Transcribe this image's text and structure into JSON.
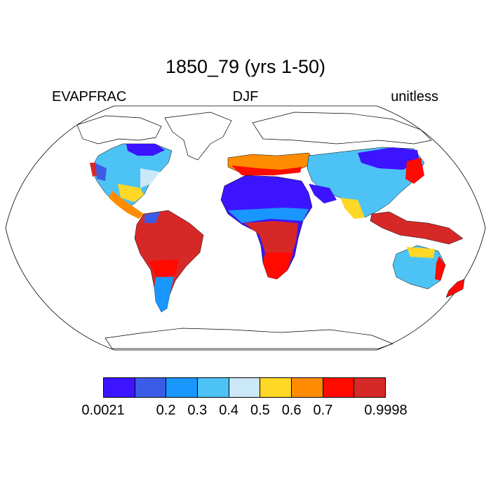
{
  "title": "1850_79 (yrs 1-50)",
  "labels": {
    "left": "EVAPFRAC",
    "center": "DJF",
    "right": "unitless"
  },
  "colorbar": {
    "colors": [
      "#3c14ff",
      "#3b5ce6",
      "#1a96ff",
      "#4dc3f5",
      "#cbe8f8",
      "#ffd726",
      "#ff8c00",
      "#ff0a00",
      "#d72828"
    ],
    "ticks": [
      "0.0021",
      "0.2",
      "0.3",
      "0.4",
      "0.5",
      "0.6",
      "0.7",
      "0.9998"
    ],
    "tick_boundaries": [
      0,
      2,
      3,
      4,
      5,
      6,
      7,
      9
    ]
  },
  "map": {
    "projection": "robinson",
    "ocean_color": "#ffffff",
    "coast_color": "#000000"
  }
}
